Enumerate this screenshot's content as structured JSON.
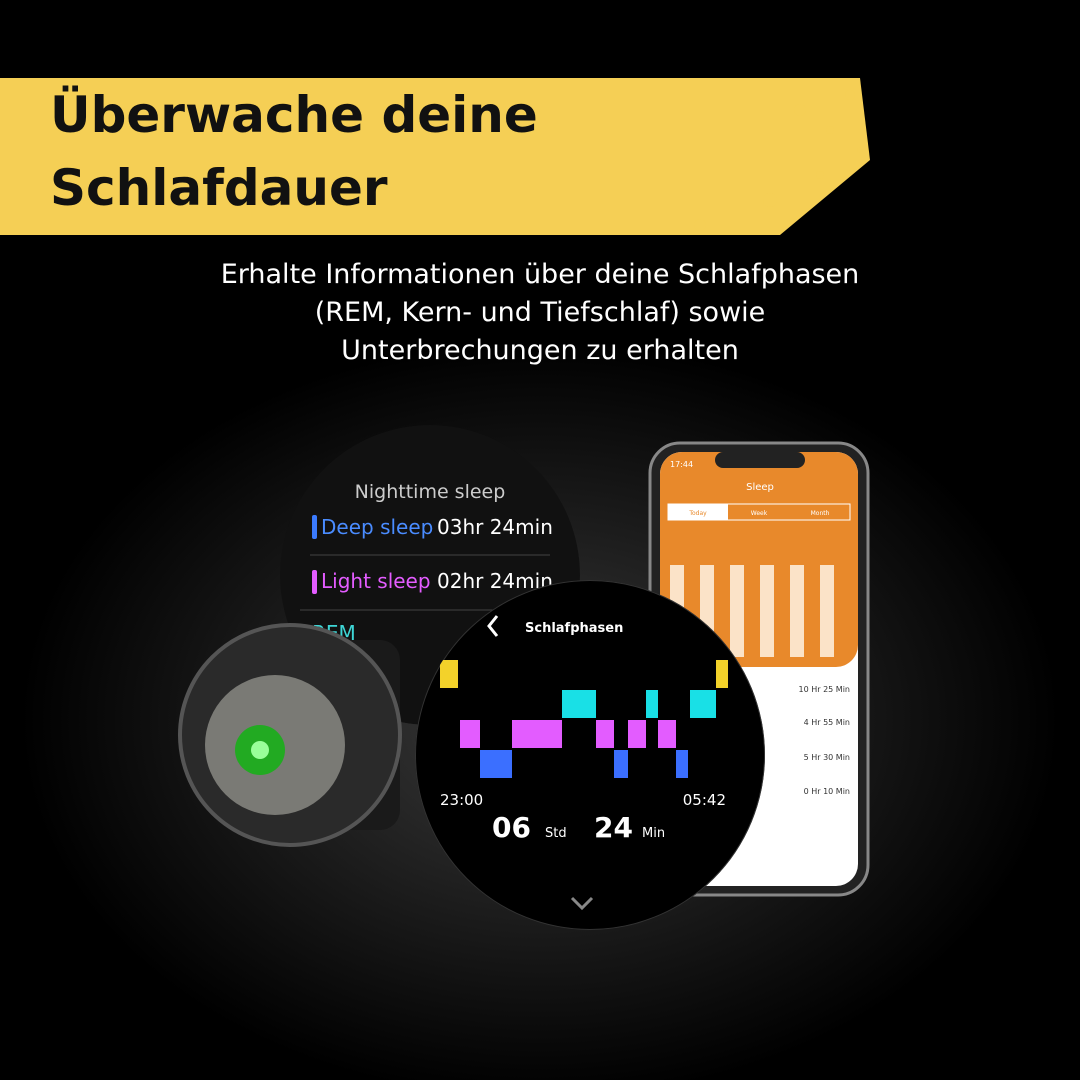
{
  "header": {
    "title_lines": [
      "Überwache deine",
      "Schlafdauer"
    ],
    "subtitle_lines": [
      "Erhalte Informationen über deine Schlafphasen",
      "(REM, Kern- und Tiefschlaf) sowie",
      "Unterbrechungen zu erhalten"
    ]
  },
  "watch_summary": {
    "title": "Nighttime sleep",
    "rows": [
      {
        "label": "Deep sleep",
        "value": "03hr 24min"
      },
      {
        "label": "Light sleep",
        "value": "02hr 24min"
      },
      {
        "label": "REM"
      }
    ]
  },
  "watch_phases": {
    "title": "Schlafphasen",
    "start": "23:00",
    "end": "05:42",
    "hours": "06",
    "hours_unit": "Std",
    "minutes": "24",
    "minutes_unit": "Min"
  },
  "phone": {
    "time": "17:44",
    "title": "Sleep",
    "tabs": [
      "Today",
      "Week",
      "Month"
    ],
    "durations": [
      "10 Hr 25 Min",
      "4 Hr 55 Min",
      "5 Hr 30 Min",
      "0 Hr 10 Min"
    ]
  }
}
